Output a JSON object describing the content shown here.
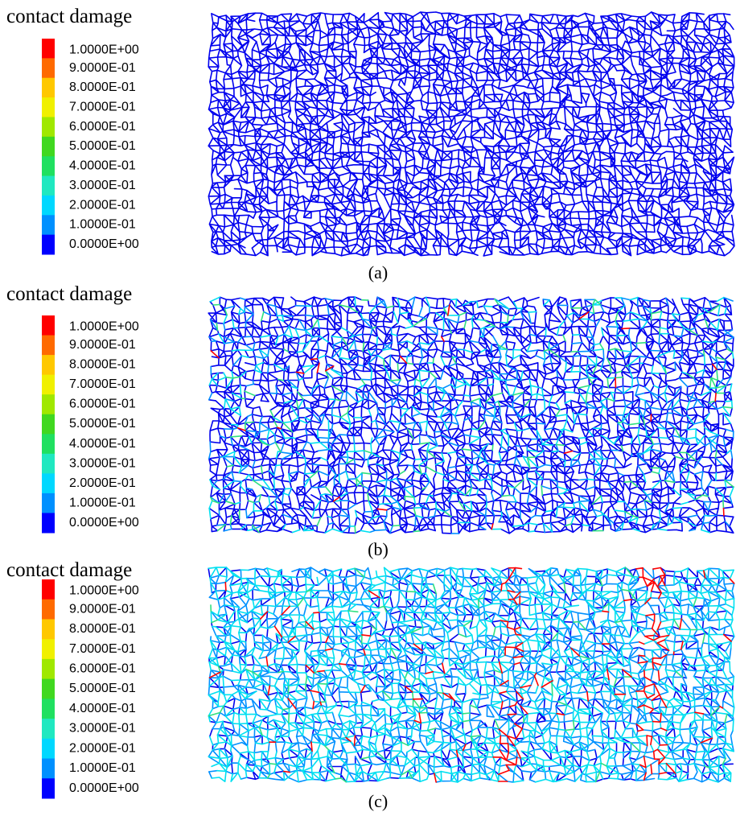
{
  "panels": [
    {
      "title": "contact damage",
      "legend_labels": [
        "1.0000E+00",
        "9.0000E-01",
        "8.0000E-01",
        "7.0000E-01",
        "6.0000E-01",
        "5.0000E-01",
        "4.0000E-01",
        "3.0000E-01",
        "2.0000E-01",
        "1.0000E-01",
        "0.0000E+00"
      ],
      "caption": "(a)"
    },
    {
      "title": "contact damage",
      "legend_labels": [
        "1.0000E+00",
        "9.0000E-01",
        "8.0000E-01",
        "7.0000E-01",
        "6.0000E-01",
        "5.0000E-01",
        "4.0000E-01",
        "3.0000E-01",
        "2.0000E-01",
        "1.0000E-01",
        "0.0000E+00"
      ],
      "caption": "(b)"
    },
    {
      "title": "contact damage",
      "legend_labels": [
        "1.0000E+00",
        "9.0000E-01",
        "8.0000E-01",
        "7.0000E-01",
        "6.0000E-01",
        "5.0000E-01",
        "4.0000E-01",
        "3.0000E-01",
        "2.0000E-01",
        "1.0000E-01",
        "0.0000E+00"
      ],
      "caption": "(c)"
    }
  ]
}
